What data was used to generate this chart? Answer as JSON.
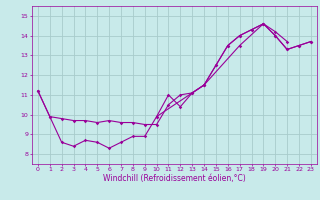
{
  "xlabel": "Windchill (Refroidissement éolien,°C)",
  "bg_color": "#c8eaea",
  "grid_color": "#a8cccc",
  "line_color": "#990099",
  "xlim": [
    -0.5,
    23.5
  ],
  "ylim": [
    7.5,
    15.5
  ],
  "yticks": [
    8,
    9,
    10,
    11,
    12,
    13,
    14,
    15
  ],
  "xticks": [
    0,
    1,
    2,
    3,
    4,
    5,
    6,
    7,
    8,
    9,
    10,
    11,
    12,
    13,
    14,
    15,
    16,
    17,
    18,
    19,
    20,
    21,
    22,
    23
  ],
  "tick_fontsize": 4.5,
  "xlabel_fontsize": 5.5,
  "line1_x": [
    0,
    1,
    2,
    3,
    4,
    5,
    6,
    7,
    8,
    9,
    10,
    11,
    12,
    13,
    14,
    15,
    16,
    17,
    18,
    19,
    20,
    21
  ],
  "line1_y": [
    11.2,
    9.9,
    9.8,
    9.7,
    9.7,
    9.6,
    9.7,
    9.6,
    9.6,
    9.5,
    9.5,
    10.5,
    11.0,
    11.1,
    11.5,
    12.5,
    13.5,
    14.0,
    14.3,
    14.6,
    14.2,
    13.7
  ],
  "line2_x": [
    0,
    1,
    2,
    3,
    4,
    5,
    6,
    7,
    8,
    9,
    10,
    11,
    12,
    13,
    14,
    15,
    16,
    17,
    18,
    19,
    20,
    21,
    22,
    23
  ],
  "line2_y": [
    11.2,
    9.9,
    8.6,
    8.4,
    8.7,
    8.6,
    8.3,
    8.6,
    8.9,
    8.9,
    9.9,
    11.0,
    10.4,
    11.1,
    11.5,
    12.5,
    13.5,
    14.0,
    14.3,
    14.6,
    14.0,
    13.3,
    13.5,
    13.7
  ],
  "line3_x": [
    10,
    14,
    17,
    19,
    20,
    21,
    22,
    23
  ],
  "line3_y": [
    9.9,
    11.5,
    13.5,
    14.6,
    14.0,
    13.3,
    13.5,
    13.7
  ]
}
